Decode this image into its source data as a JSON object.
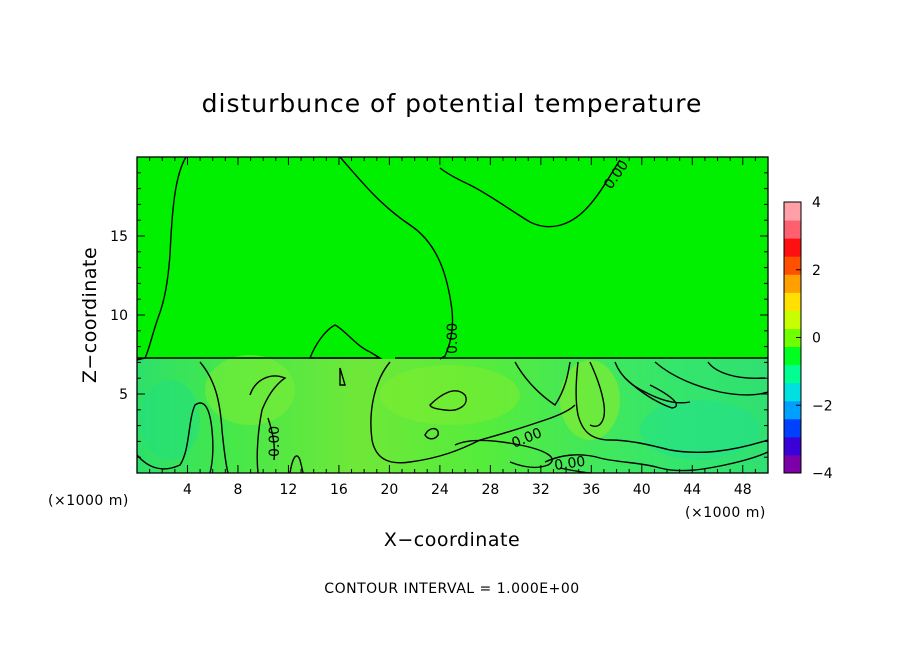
{
  "chart_data": {
    "type": "heatmap",
    "title": "disturbunce of potential temperature",
    "xlabel": "X−coordinate",
    "ylabel": "Z−coordinate",
    "x_unit_label": "(×1000 m)",
    "x_unit_label_right": "(×1000 m)",
    "x_ticks": [
      4,
      8,
      12,
      16,
      20,
      24,
      28,
      32,
      36,
      40,
      44,
      48
    ],
    "y_ticks": [
      5,
      10,
      15
    ],
    "xlim": [
      0,
      50
    ],
    "ylim": [
      0,
      20
    ],
    "colorbar": {
      "ticks": [
        "4",
        "2",
        "0",
        "−2",
        "−4"
      ],
      "range": [
        -4,
        4
      ],
      "colors": [
        "#7b00a8",
        "#3a00d8",
        "#0040ff",
        "#00a0ff",
        "#00e0e0",
        "#00ff90",
        "#00ff20",
        "#70ff00",
        "#c8ff00",
        "#ffe000",
        "#ffa000",
        "#ff5000",
        "#ff1010",
        "#ff6070",
        "#ffa0a8"
      ]
    },
    "contour_labels": [
      "0.00",
      "0.00",
      "0.00",
      "0.00",
      "0.00"
    ],
    "footer": "CONTOUR INTERVAL = 1.000E+00"
  }
}
